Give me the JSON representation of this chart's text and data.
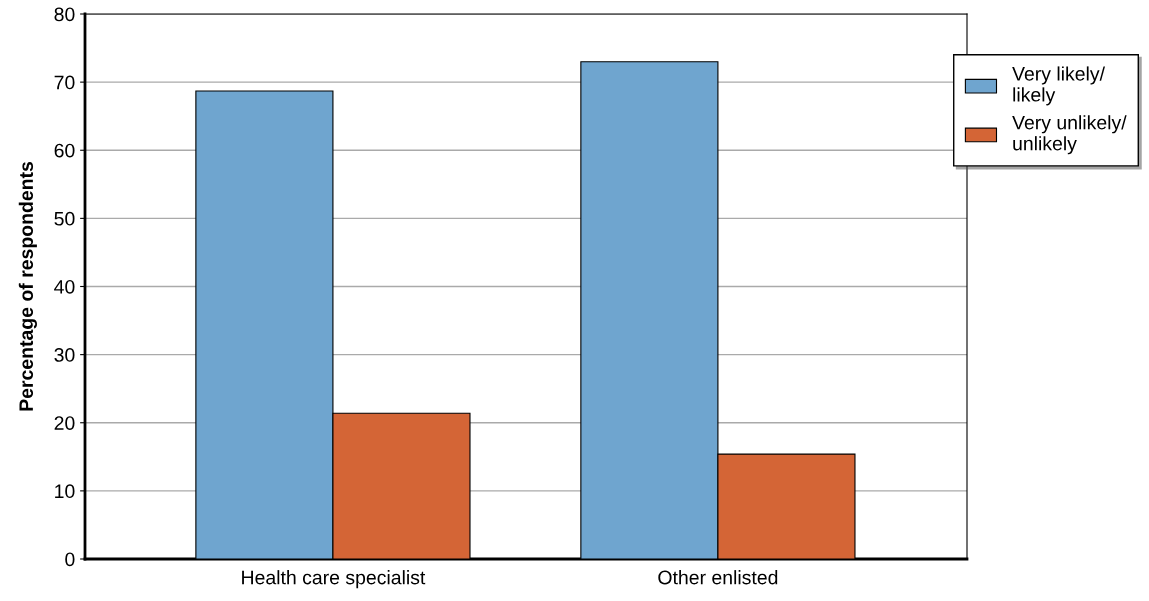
{
  "chart_data": {
    "type": "bar",
    "ylabel": "Percentage of respondents",
    "categories": [
      "Health care specialist",
      "Other enlisted"
    ],
    "series": [
      {
        "name": "Very likely/\nlikely",
        "color": "#6fa5cf",
        "values": [
          68.7,
          73.0
        ]
      },
      {
        "name": "Very unlikely/\nunlikely",
        "color": "#d46536",
        "values": [
          21.4,
          15.4
        ]
      }
    ],
    "ylim": [
      0,
      80
    ],
    "yticks": [
      0,
      10,
      20,
      30,
      40,
      50,
      60,
      70,
      80
    ],
    "grid": "y",
    "legend": "right"
  }
}
